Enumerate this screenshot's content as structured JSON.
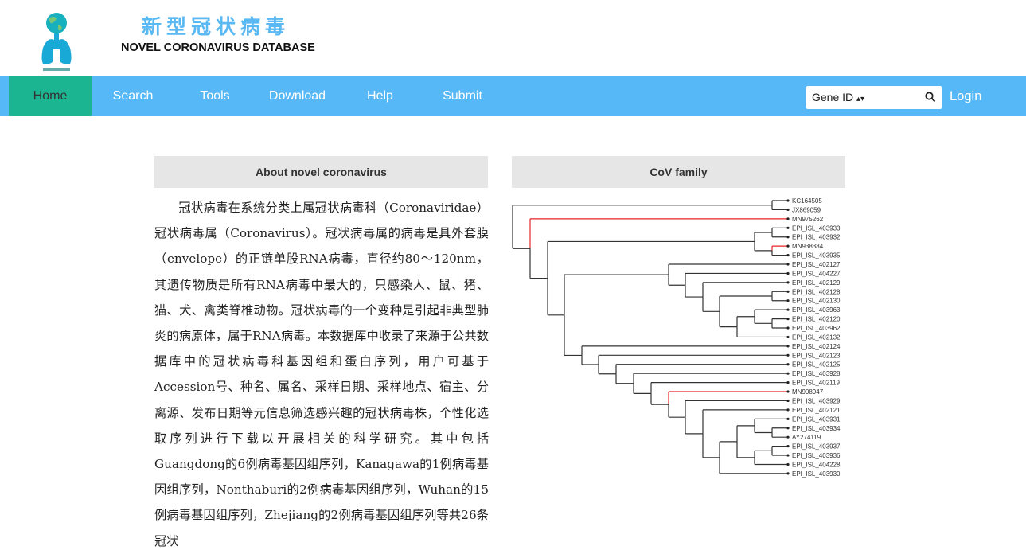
{
  "header": {
    "title_cn": "新型冠状病毒",
    "title_en": "NOVEL CORONAVIRUS DATABASE"
  },
  "nav": {
    "items": [
      {
        "label": "Home",
        "active": true
      },
      {
        "label": "Search"
      },
      {
        "label": "Tools"
      },
      {
        "label": "Download"
      },
      {
        "label": "Help"
      },
      {
        "label": "Submit"
      }
    ],
    "search": {
      "select_value": "Gene ID",
      "icon": "search-icon"
    },
    "login": "Login"
  },
  "colors": {
    "nav": "#56b8f6",
    "active": "#1cb592",
    "title": "#5ab8f2",
    "highlight_branch": "#e8242a"
  },
  "about": {
    "title": "About novel coronavirus",
    "text": "冠状病毒在系统分类上属冠状病毒科（Coronaviridae）冠状病毒属（Coronavirus）。冠状病毒属的病毒是具外套膜（envelope）的正链单股RNA病毒，直径约80～120nm，其遗传物质是所有RNA病毒中最大的，只感染人、鼠、猪、猫、犬、禽类脊椎动物。冠状病毒的一个变种是引起非典型肺炎的病原体，属于RNA病毒。本数据库中收录了来源于公共数据库中的冠状病毒科基因组和蛋白序列，用户可基于Accession号、种名、属名、采样日期、采样地点、宿主、分离源、发布日期等元信息筛选感兴趣的冠状病毒株，个性化选取序列进行下载以开展相关的科学研究。其中包括Guangdong的6例病毒基因组序列，Kanagawa的1例病毒基因组序列，Nonthaburi的2例病毒基因组序列，Wuhan的15例病毒基因组序列，Zhejiang的2例病毒基因组序列等共26条冠状"
  },
  "cov": {
    "title": "CoV family",
    "leaves": [
      "KC164505",
      "JX869059",
      "MN975262",
      "EPI_ISL_403933",
      "EPI_ISL_403932",
      "MN938384",
      "EPI_ISL_403935",
      "EPI_ISL_402127",
      "EPI_ISL_404227",
      "EPI_ISL_402129",
      "EPI_ISL_402128",
      "EPI_ISL_402130",
      "EPI_ISL_403963",
      "EPI_ISL_402120",
      "EPI_ISL_403962",
      "EPI_ISL_402132",
      "EPI_ISL_402124",
      "EPI_ISL_402123",
      "EPI_ISL_402125",
      "EPI_ISL_403928",
      "EPI_ISL_402119",
      "MN908947",
      "EPI_ISL_403929",
      "EPI_ISL_402121",
      "EPI_ISL_403931",
      "EPI_ISL_403934",
      "AY274119",
      "EPI_ISL_403937",
      "EPI_ISL_403936",
      "EPI_ISL_404228",
      "EPI_ISL_403930"
    ],
    "highlighted": [
      "MN975262",
      "MN938384",
      "MN908947"
    ]
  }
}
